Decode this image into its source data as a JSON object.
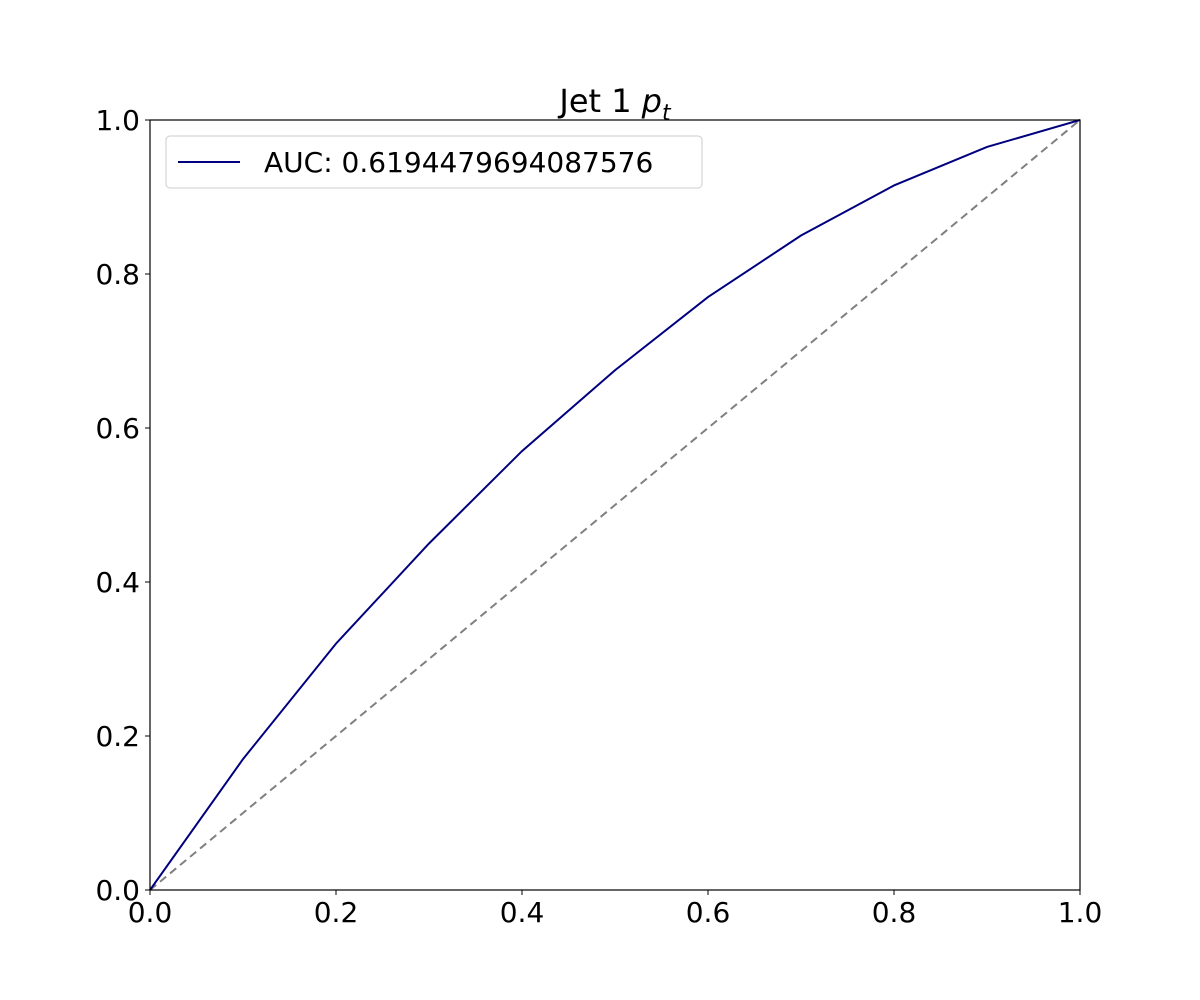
{
  "chart_data": {
    "type": "line",
    "title": "Jet 1",
    "title_symbol": "p",
    "title_subscript": "t",
    "x": [
      0,
      0.1,
      0.2,
      0.3,
      0.4,
      0.5,
      0.6,
      0.7,
      0.8,
      0.9,
      1.0
    ],
    "series": [
      {
        "name": "AUC: 0.6194479694087576",
        "color": "#00007f",
        "values": [
          0,
          0.17,
          0.32,
          0.45,
          0.57,
          0.675,
          0.77,
          0.85,
          0.915,
          0.965,
          1.0
        ]
      }
    ],
    "reference": {
      "x": [
        0,
        1
      ],
      "values": [
        0,
        1
      ],
      "color": "#808080"
    },
    "xlim": [
      0,
      1
    ],
    "ylim": [
      0,
      1
    ],
    "xticks": [
      {
        "value": 0,
        "label": "0.0"
      },
      0.2,
      0.4,
      0.6,
      0.8,
      {
        "value": 1,
        "label": "1.0"
      }
    ],
    "yticks": [
      {
        "value": 0,
        "label": "0.0"
      },
      0.2,
      0.4,
      0.6,
      0.8,
      {
        "value": 1,
        "label": "1.0"
      }
    ],
    "legend": "upper left",
    "grid": false
  }
}
